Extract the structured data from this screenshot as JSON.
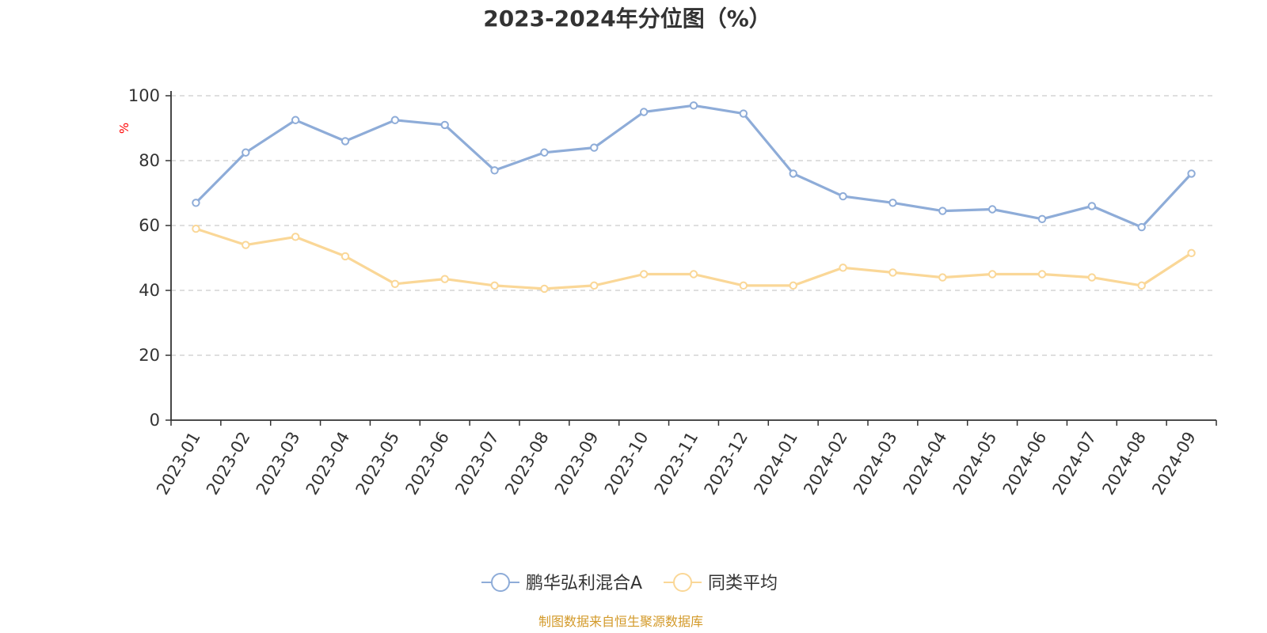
{
  "chart_data": {
    "type": "line",
    "title": "2023-2024年分位图（%）",
    "ylabel": "%",
    "xlabel": "",
    "ylim": [
      0,
      100
    ],
    "yticks": [
      0,
      20,
      40,
      60,
      80,
      100
    ],
    "grid": true,
    "legend_position": "bottom",
    "categories": [
      "2023-01",
      "2023-02",
      "2023-03",
      "2023-04",
      "2023-05",
      "2023-06",
      "2023-07",
      "2023-08",
      "2023-09",
      "2023-10",
      "2023-11",
      "2023-12",
      "2024-01",
      "2024-02",
      "2024-03",
      "2024-04",
      "2024-05",
      "2024-06",
      "2024-07",
      "2024-08",
      "2024-09"
    ],
    "series": [
      {
        "name": "鹏华弘利混合A",
        "color": "#8eacd8",
        "values": [
          67,
          82.5,
          92.5,
          86,
          92.5,
          91,
          77,
          82.5,
          84,
          95,
          97,
          94.5,
          76,
          69,
          67,
          64.5,
          65,
          62,
          66,
          59.5,
          76
        ]
      },
      {
        "name": "同类平均",
        "color": "#fad797",
        "values": [
          59,
          54,
          56.5,
          50.5,
          42,
          43.5,
          41.5,
          40.5,
          41.5,
          45,
          45,
          41.5,
          41.5,
          47,
          45.5,
          44,
          45,
          45,
          44,
          41.5,
          51.5
        ]
      }
    ],
    "source": "制图数据来自恒生聚源数据库",
    "colors": {
      "axis": "#333333",
      "grid": "#cccccc",
      "unit": "#ff0000",
      "source": "#d39a2a"
    }
  }
}
